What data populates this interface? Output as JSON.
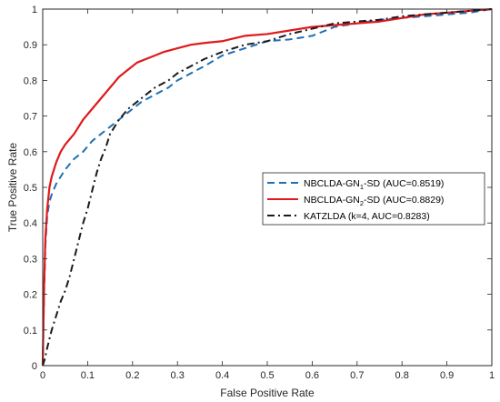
{
  "chart_data": {
    "type": "line",
    "xlabel": "False Positive Rate",
    "ylabel": "True Positive Rate",
    "xlim": [
      0,
      1
    ],
    "ylim": [
      0,
      1
    ],
    "xticks": [
      0,
      0.1,
      0.2,
      0.3,
      0.4,
      0.5,
      0.6,
      0.7,
      0.8,
      0.9,
      1
    ],
    "xtick_labels": [
      "0",
      "0.1",
      "0.2",
      "0.3",
      "0.4",
      "0.5",
      "0.6",
      "0.7",
      "0.8",
      "0.9",
      "1"
    ],
    "yticks": [
      0,
      0.1,
      0.2,
      0.3,
      0.4,
      0.5,
      0.6,
      0.7,
      0.8,
      0.9,
      1
    ],
    "ytick_labels": [
      "0",
      "0.1",
      "0.2",
      "0.3",
      "0.4",
      "0.5",
      "0.6",
      "0.7",
      "0.8",
      "0.9",
      "1"
    ],
    "grid": false,
    "legend_position": "center-right",
    "series": [
      {
        "name": "NBCLDA-GN1-SD (AUC=0.8519)",
        "legend_main": "NBCLDA-GN",
        "legend_sub": "1",
        "legend_rest": "-SD (AUC=0.8519)",
        "color": "#1f6fb4",
        "dash": "dashed",
        "x": [
          0,
          0.003,
          0.006,
          0.01,
          0.015,
          0.02,
          0.03,
          0.04,
          0.05,
          0.07,
          0.09,
          0.11,
          0.13,
          0.15,
          0.17,
          0.19,
          0.22,
          0.25,
          0.28,
          0.3,
          0.33,
          0.36,
          0.4,
          0.45,
          0.5,
          0.55,
          0.6,
          0.65,
          0.7,
          0.75,
          0.8,
          0.85,
          0.9,
          0.95,
          1.0
        ],
        "y": [
          0,
          0.2,
          0.34,
          0.42,
          0.46,
          0.48,
          0.51,
          0.53,
          0.55,
          0.58,
          0.6,
          0.63,
          0.65,
          0.67,
          0.69,
          0.71,
          0.74,
          0.76,
          0.78,
          0.8,
          0.82,
          0.84,
          0.87,
          0.89,
          0.91,
          0.915,
          0.925,
          0.95,
          0.96,
          0.97,
          0.975,
          0.98,
          0.985,
          0.99,
          1.0
        ]
      },
      {
        "name": "NBCLDA-GN2-SD (AUC=0.8829)",
        "legend_main": "NBCLDA-GN",
        "legend_sub": "2",
        "legend_rest": "-SD (AUC=0.8829)",
        "color": "#e0191c",
        "dash": "solid",
        "x": [
          0,
          0.003,
          0.006,
          0.01,
          0.015,
          0.02,
          0.03,
          0.04,
          0.05,
          0.07,
          0.09,
          0.11,
          0.13,
          0.15,
          0.17,
          0.19,
          0.21,
          0.23,
          0.25,
          0.27,
          0.3,
          0.33,
          0.36,
          0.4,
          0.45,
          0.5,
          0.55,
          0.6,
          0.65,
          0.7,
          0.75,
          0.8,
          0.85,
          0.9,
          0.95,
          1.0
        ],
        "y": [
          0,
          0.22,
          0.36,
          0.44,
          0.5,
          0.53,
          0.57,
          0.6,
          0.62,
          0.65,
          0.69,
          0.72,
          0.75,
          0.78,
          0.81,
          0.83,
          0.85,
          0.86,
          0.87,
          0.88,
          0.89,
          0.9,
          0.905,
          0.91,
          0.925,
          0.93,
          0.94,
          0.95,
          0.955,
          0.96,
          0.965,
          0.975,
          0.985,
          0.99,
          0.995,
          1.0
        ]
      },
      {
        "name": "KATZLDA (k=4, AUC=0.8283)",
        "legend_main": "KATZLDA (k=4, AUC=0.8283)",
        "legend_sub": "",
        "legend_rest": "",
        "color": "#1a1a1a",
        "dash": "dashdot",
        "x": [
          0,
          0.005,
          0.01,
          0.02,
          0.03,
          0.04,
          0.05,
          0.06,
          0.07,
          0.08,
          0.09,
          0.1,
          0.11,
          0.12,
          0.13,
          0.14,
          0.15,
          0.17,
          0.19,
          0.21,
          0.23,
          0.25,
          0.28,
          0.3,
          0.33,
          0.36,
          0.4,
          0.45,
          0.5,
          0.55,
          0.6,
          0.65,
          0.7,
          0.75,
          0.8,
          0.85,
          0.9,
          0.95,
          1.0
        ],
        "y": [
          0,
          0.02,
          0.05,
          0.1,
          0.14,
          0.18,
          0.21,
          0.25,
          0.3,
          0.35,
          0.4,
          0.44,
          0.49,
          0.54,
          0.58,
          0.61,
          0.65,
          0.69,
          0.72,
          0.74,
          0.76,
          0.78,
          0.8,
          0.82,
          0.84,
          0.86,
          0.88,
          0.9,
          0.91,
          0.93,
          0.945,
          0.96,
          0.965,
          0.97,
          0.98,
          0.985,
          0.99,
          0.995,
          1.0
        ]
      }
    ]
  }
}
